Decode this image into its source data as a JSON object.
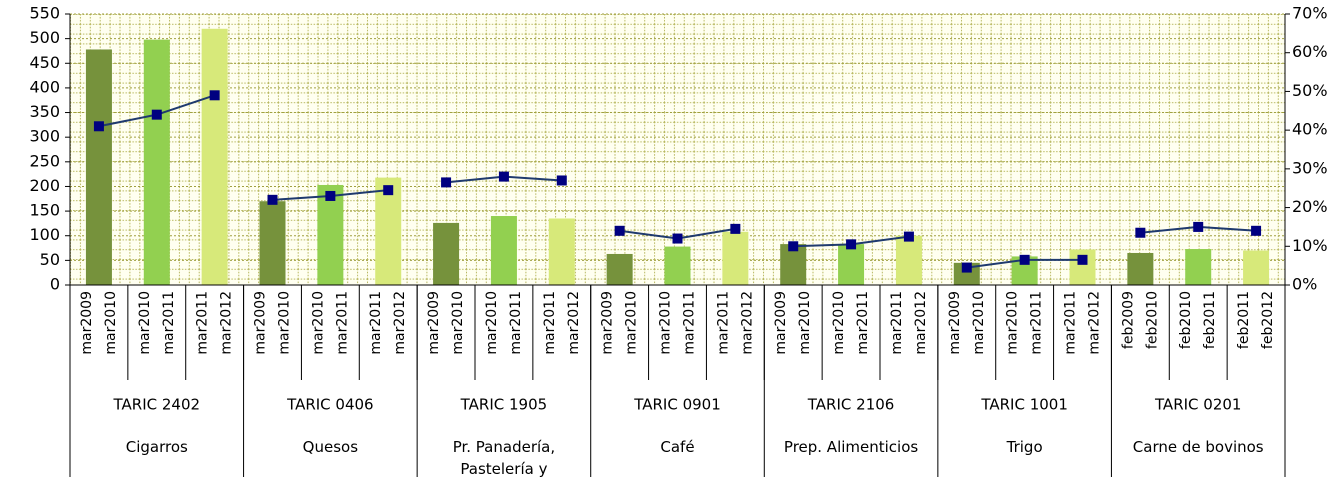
{
  "chart_data": {
    "type": "bar-line",
    "categories": [
      [
        "mar2009",
        "mar2010"
      ],
      [
        "mar2010",
        "mar2011"
      ],
      [
        "mar2011",
        "mar2012"
      ],
      [
        "mar2009",
        "mar2010"
      ],
      [
        "mar2010",
        "mar2011"
      ],
      [
        "mar2011",
        "mar2012"
      ],
      [
        "mar2009",
        "mar2010"
      ],
      [
        "mar2010",
        "mar2011"
      ],
      [
        "mar2011",
        "mar2012"
      ],
      [
        "mar2009",
        "mar2010"
      ],
      [
        "mar2010",
        "mar2011"
      ],
      [
        "mar2011",
        "mar2012"
      ],
      [
        "mar2009",
        "mar2010"
      ],
      [
        "mar2010",
        "mar2011"
      ],
      [
        "mar2011",
        "mar2012"
      ],
      [
        "mar2009",
        "mar2010"
      ],
      [
        "mar2010",
        "mar2011"
      ],
      [
        "mar2011",
        "mar2012"
      ],
      [
        "feb2009",
        "feb2010"
      ],
      [
        "feb2010",
        "feb2011"
      ],
      [
        "feb2011",
        "feb2012"
      ]
    ],
    "groups": [
      {
        "code": "TARIC 2402",
        "name": "Cigarros"
      },
      {
        "code": "TARIC 0406",
        "name": "Quesos"
      },
      {
        "code": "TARIC 1905",
        "name": "Pr. Panadería, Pastelería y"
      },
      {
        "code": "TARIC 0901",
        "name": "Café"
      },
      {
        "code": "TARIC 2106",
        "name": "Prep. Alimenticios"
      },
      {
        "code": "TARIC 1001",
        "name": "Trigo"
      },
      {
        "code": "TARIC 0201",
        "name": "Carne de bovinos"
      }
    ],
    "series": [
      {
        "type": "bar",
        "colors": [
          "#76923c",
          "#92d050",
          "#d7e97a"
        ],
        "values": [
          478,
          498,
          520,
          170,
          203,
          218,
          126,
          140,
          135,
          63,
          78,
          108,
          83,
          83,
          100,
          45,
          58,
          72,
          65,
          73,
          70
        ]
      },
      {
        "type": "line",
        "axis": "y2",
        "color": "#1f3a6e",
        "marker_color": "#000080",
        "values": [
          41,
          44,
          49,
          22,
          23,
          24.5,
          26.5,
          28,
          27,
          14,
          12,
          14.5,
          10,
          10.5,
          12.5,
          4.5,
          6.5,
          6.5,
          13.5,
          15,
          14
        ]
      }
    ],
    "ylim": [
      0,
      550
    ],
    "yticks": [
      0,
      50,
      100,
      150,
      200,
      250,
      300,
      350,
      400,
      450,
      500,
      550
    ],
    "y2lim": [
      0,
      70
    ],
    "y2ticks": [
      {
        "value": 0,
        "label": "0%"
      },
      {
        "value": 10,
        "label": "10%"
      },
      {
        "value": 20,
        "label": "20%"
      },
      {
        "value": 30,
        "label": "30%"
      },
      {
        "value": 40,
        "label": "40%"
      },
      {
        "value": 50,
        "label": "50%"
      },
      {
        "value": 60,
        "label": "60%"
      },
      {
        "value": 70,
        "label": "70%"
      }
    ],
    "grid": true
  }
}
